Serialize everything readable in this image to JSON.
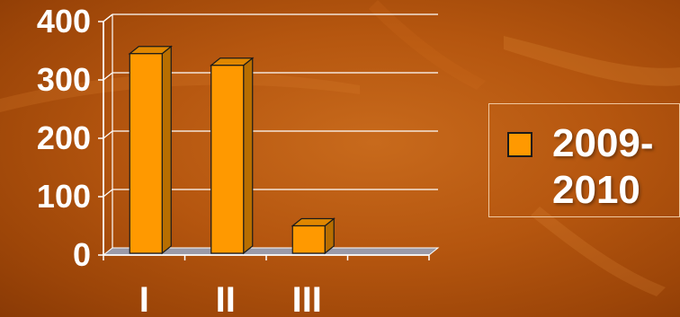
{
  "chart_data": {
    "type": "bar",
    "categories": [
      "I",
      "II",
      "III"
    ],
    "series": [
      {
        "name": "2009-\n2010",
        "values": [
          345,
          325,
          50
        ],
        "color": "#ff9900"
      }
    ],
    "ylim": [
      0,
      400
    ],
    "yticks": [
      "0",
      "100",
      "200",
      "300",
      "400"
    ],
    "grid": true,
    "legend_position": "right",
    "bar_style": "3d"
  }
}
